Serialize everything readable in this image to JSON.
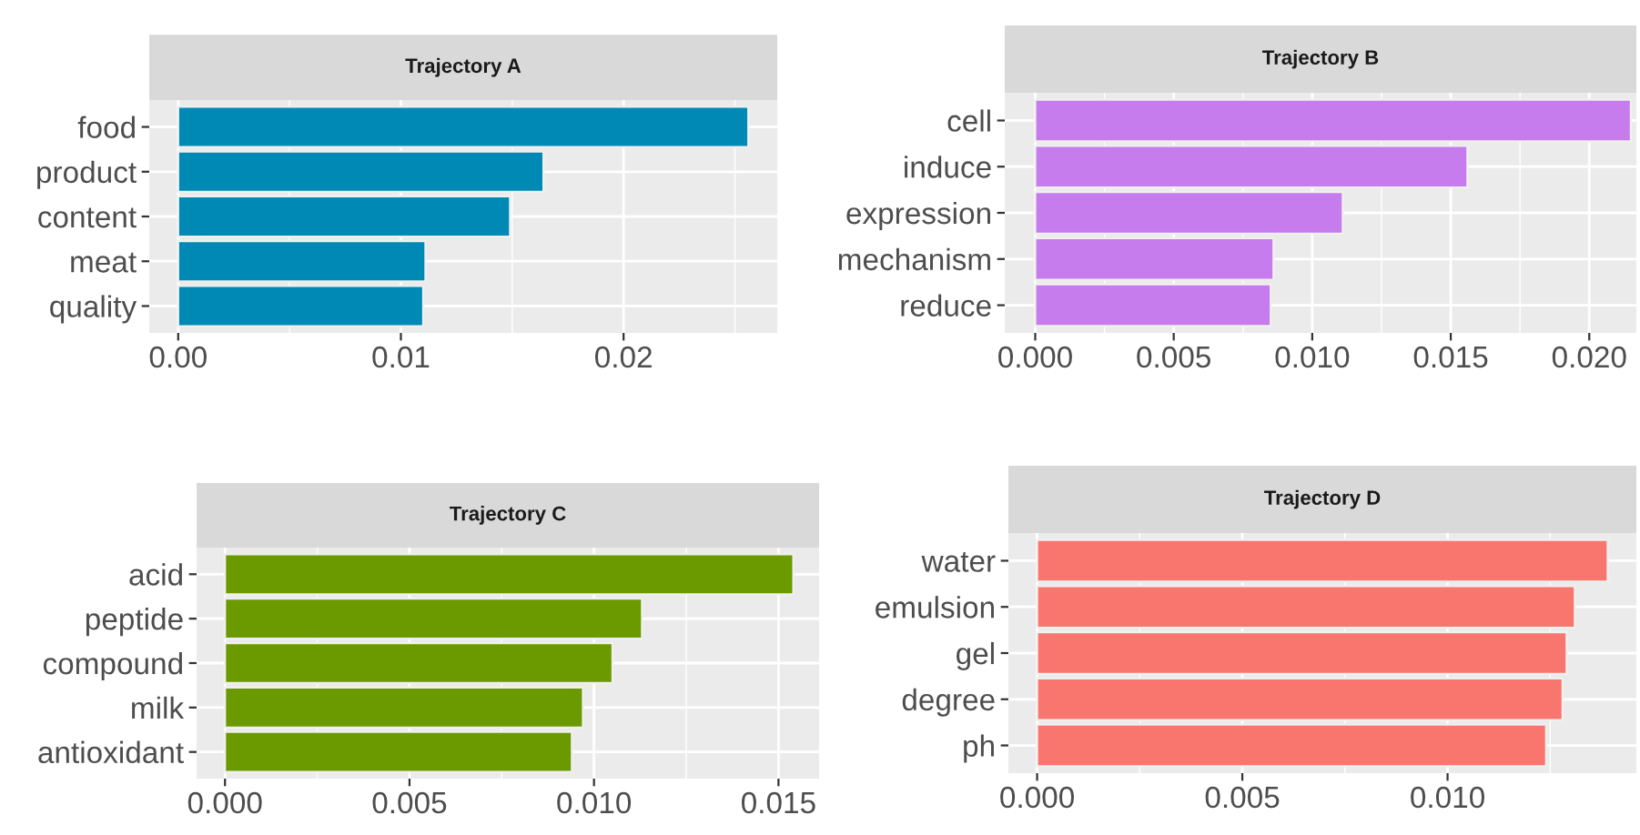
{
  "chart_data": [
    {
      "type": "bar",
      "orientation": "horizontal",
      "title": "Trajectory A",
      "categories": [
        "food",
        "product",
        "content",
        "meat",
        "quality"
      ],
      "values": [
        0.0256,
        0.0164,
        0.0149,
        0.0111,
        0.011
      ],
      "color": "#0089b4",
      "xlim": [
        -0.0013,
        0.0269
      ],
      "xticks": [
        {
          "value": 0,
          "label": "0.00"
        },
        {
          "value": 0.01,
          "label": "0.01"
        },
        {
          "value": 0.02,
          "label": "0.02"
        }
      ],
      "grid": true
    },
    {
      "type": "bar",
      "orientation": "horizontal",
      "title": "Trajectory B",
      "categories": [
        "cell",
        "induce",
        "expression",
        "mechanism",
        "reduce"
      ],
      "values": [
        0.0215,
        0.0156,
        0.0111,
        0.0086,
        0.0085
      ],
      "color": "#c77cee",
      "xlim": [
        -0.0011,
        0.0217
      ],
      "xticks": [
        {
          "value": 0,
          "label": "0.000"
        },
        {
          "value": 0.005,
          "label": "0.005"
        },
        {
          "value": 0.01,
          "label": "0.010"
        },
        {
          "value": 0.015,
          "label": "0.015"
        },
        {
          "value": 0.02,
          "label": "0.020"
        }
      ],
      "grid": true
    },
    {
      "type": "bar",
      "orientation": "horizontal",
      "title": "Trajectory C",
      "categories": [
        "acid",
        "peptide",
        "compound",
        "milk",
        "antioxidant"
      ],
      "values": [
        0.0154,
        0.0113,
        0.0105,
        0.0097,
        0.0094
      ],
      "color": "#6b9a00",
      "xlim": [
        -0.00077,
        0.0161
      ],
      "xticks": [
        {
          "value": 0,
          "label": "0.000"
        },
        {
          "value": 0.005,
          "label": "0.005"
        },
        {
          "value": 0.01,
          "label": "0.010"
        },
        {
          "value": 0.015,
          "label": "0.015"
        }
      ],
      "grid": true
    },
    {
      "type": "bar",
      "orientation": "horizontal",
      "title": "Trajectory D",
      "categories": [
        "water",
        "emulsion",
        "gel",
        "degree",
        "ph"
      ],
      "values": [
        0.0139,
        0.0131,
        0.0129,
        0.0128,
        0.0124
      ],
      "color": "#f8766d",
      "xlim": [
        -0.0007,
        0.0146
      ],
      "xticks": [
        {
          "value": 0,
          "label": "0.000"
        },
        {
          "value": 0.005,
          "label": "0.005"
        },
        {
          "value": 0.01,
          "label": "0.010"
        }
      ],
      "grid": true
    }
  ]
}
